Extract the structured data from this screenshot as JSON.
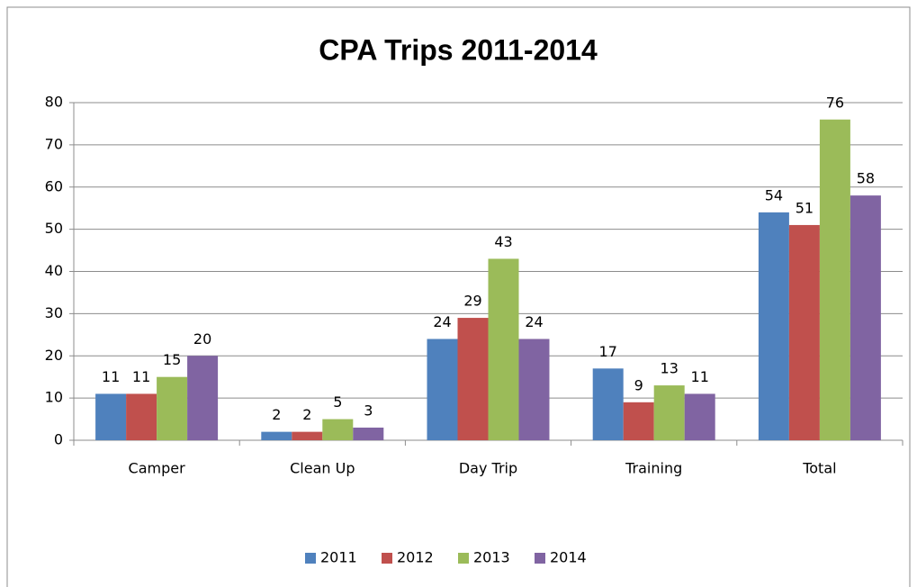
{
  "chart_data": {
    "type": "bar",
    "title": "CPA Trips 2011-2014",
    "categories": [
      "Camper",
      "Clean Up",
      "Day Trip",
      "Training",
      "Total"
    ],
    "series": [
      {
        "name": "2011",
        "color": "#4f81bd",
        "values": [
          11,
          2,
          24,
          17,
          54
        ]
      },
      {
        "name": "2012",
        "color": "#c0504d",
        "values": [
          11,
          2,
          29,
          9,
          51
        ]
      },
      {
        "name": "2013",
        "color": "#9bbb59",
        "values": [
          15,
          5,
          43,
          13,
          76
        ]
      },
      {
        "name": "2014",
        "color": "#8064a2",
        "values": [
          20,
          3,
          24,
          11,
          58
        ]
      }
    ],
    "ylim": [
      0,
      80
    ],
    "yticks": [
      0,
      10,
      20,
      30,
      40,
      50,
      60,
      70,
      80
    ],
    "grid": true,
    "legend": "bottom"
  }
}
